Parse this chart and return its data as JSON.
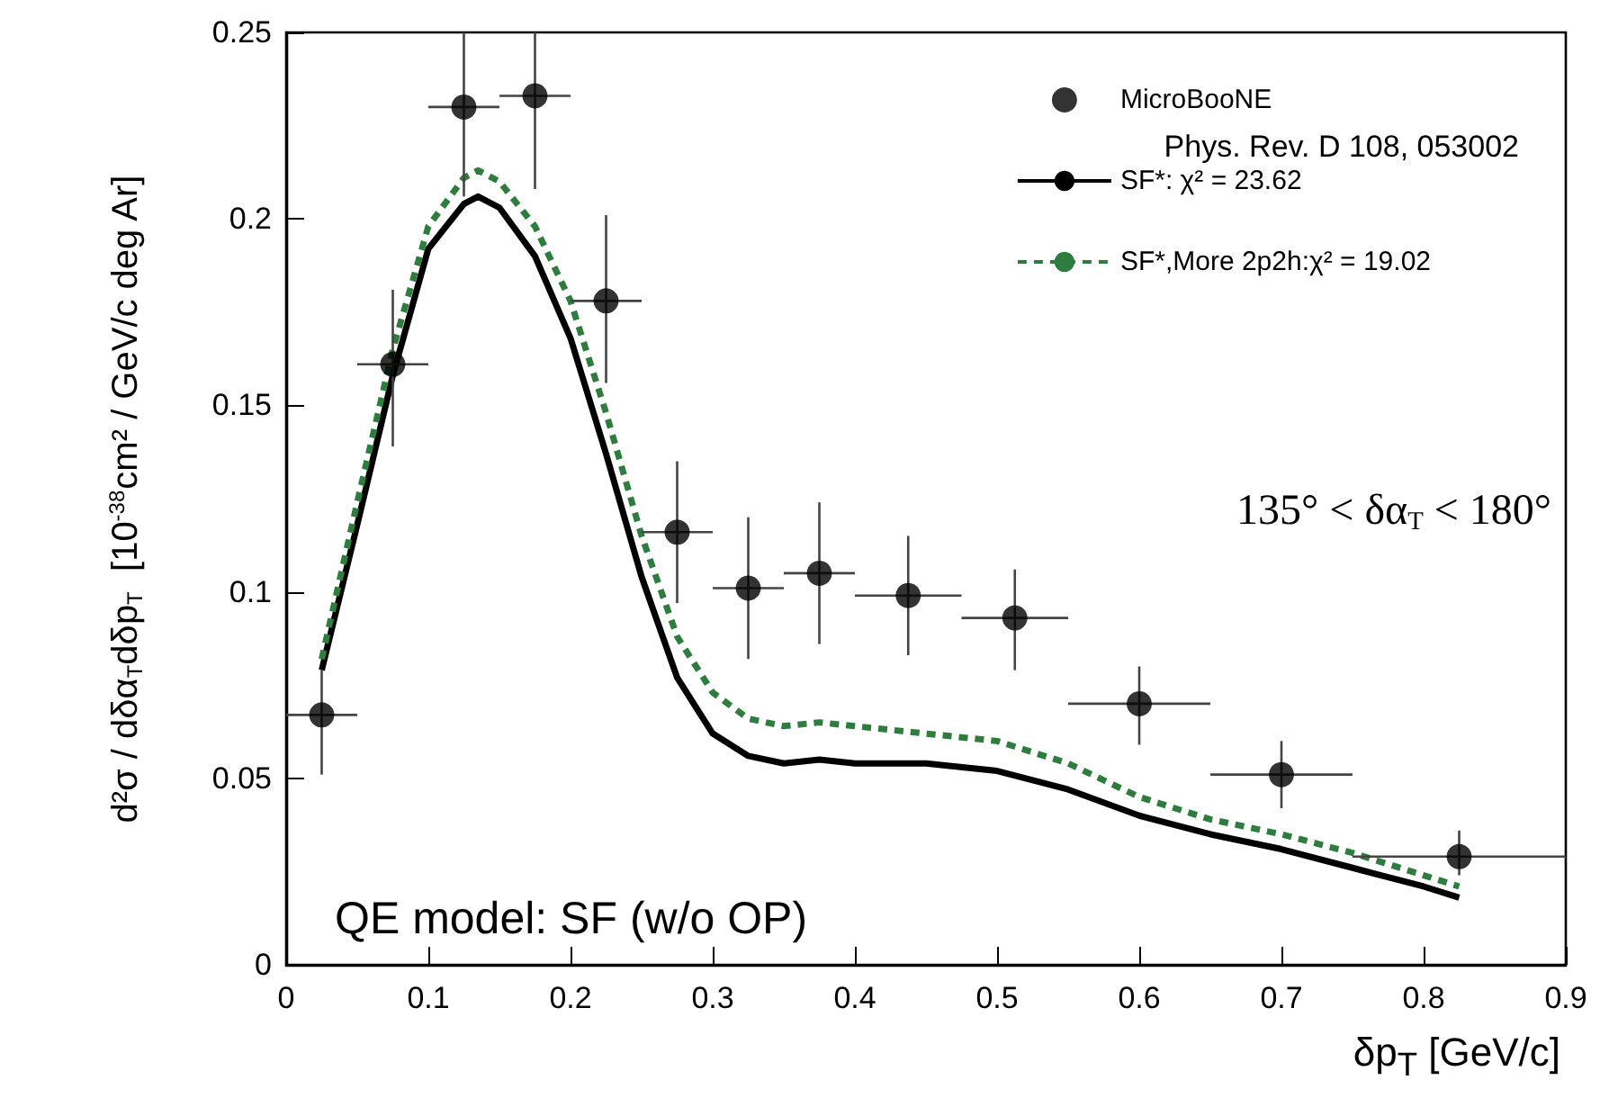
{
  "chart_data": {
    "type": "scatter",
    "xlabel": "δp$_{T}$ [GeV/c]",
    "ylabel": "d²σ / dδα$_{T}$dδp$_{T}$  [10$^{-38}$cm² / GeV/c deg Ar]",
    "xlim": [
      0,
      0.9
    ],
    "xticks": [
      0,
      0.1,
      0.2,
      0.3,
      0.4,
      0.5,
      0.6,
      0.7,
      0.8,
      0.9
    ],
    "ylim": [
      0,
      0.25
    ],
    "yticks": [
      0,
      0.05,
      0.1,
      0.15,
      0.2,
      0.25
    ],
    "grid": false,
    "legend": "top right",
    "annotations": [
      "Phys. Rev. D 108, 053002",
      "135° < δα$_{T}$ < 180°",
      "QE model: SF (w/o OP)"
    ],
    "series": [
      {
        "name": "MicroBooNE",
        "color": "#000000",
        "marker": "circle",
        "x": [
          0.025,
          0.075,
          0.125,
          0.175,
          0.225,
          0.275,
          0.325,
          0.375,
          0.4375,
          0.5125,
          0.6,
          0.7,
          0.825
        ],
        "values": [
          0.067,
          0.161,
          0.23,
          0.233,
          0.178,
          0.116,
          0.101,
          0.105,
          0.099,
          0.093,
          0.07,
          0.051,
          0.029
        ],
        "errors": [
          [
            0.051,
            0.079
          ],
          [
            0.139,
            0.181
          ],
          [
            0.206,
            0.25
          ],
          [
            0.208,
            0.25
          ],
          [
            0.156,
            0.201
          ],
          [
            0.097,
            0.135
          ],
          [
            0.082,
            0.12
          ],
          [
            0.086,
            0.124
          ],
          [
            0.083,
            0.115
          ],
          [
            0.079,
            0.106
          ],
          [
            0.059,
            0.08
          ],
          [
            0.042,
            0.06
          ],
          [
            0.024,
            0.036
          ]
        ],
        "xerrors": [
          [
            0,
            0.05
          ],
          [
            0.05,
            0.1
          ],
          [
            0.1,
            0.15
          ],
          [
            0.15,
            0.2
          ],
          [
            0.2,
            0.25
          ],
          [
            0.25,
            0.3
          ],
          [
            0.3,
            0.35
          ],
          [
            0.35,
            0.4
          ],
          [
            0.4,
            0.475
          ],
          [
            0.475,
            0.55
          ],
          [
            0.55,
            0.65
          ],
          [
            0.65,
            0.75
          ],
          [
            0.75,
            0.9
          ]
        ]
      },
      {
        "name": "SF*: χ² = 23.62",
        "type": "line",
        "color": "#000000",
        "marker": "none",
        "line_style": "solid",
        "x": [
          0.025,
          0.05,
          0.075,
          0.1,
          0.125,
          0.135,
          0.15,
          0.175,
          0.2,
          0.225,
          0.25,
          0.275,
          0.3,
          0.325,
          0.35,
          0.375,
          0.4,
          0.45,
          0.5,
          0.55,
          0.6,
          0.65,
          0.7,
          0.75,
          0.8,
          0.825
        ],
        "values": [
          0.079,
          0.118,
          0.158,
          0.192,
          0.204,
          0.206,
          0.203,
          0.19,
          0.168,
          0.137,
          0.104,
          0.077,
          0.062,
          0.056,
          0.054,
          0.055,
          0.054,
          0.054,
          0.052,
          0.047,
          0.04,
          0.035,
          0.031,
          0.026,
          0.021,
          0.018
        ]
      },
      {
        "name": "SF*,More 2p2h:χ² = 19.02",
        "type": "line",
        "color": "#2e7d3e",
        "marker": "none",
        "line_style": "dashed",
        "x": [
          0.025,
          0.05,
          0.075,
          0.1,
          0.125,
          0.135,
          0.15,
          0.175,
          0.2,
          0.225,
          0.25,
          0.275,
          0.3,
          0.325,
          0.35,
          0.375,
          0.4,
          0.45,
          0.5,
          0.55,
          0.6,
          0.65,
          0.7,
          0.75,
          0.8,
          0.825
        ],
        "values": [
          0.082,
          0.124,
          0.165,
          0.198,
          0.211,
          0.213,
          0.21,
          0.198,
          0.178,
          0.148,
          0.115,
          0.088,
          0.073,
          0.066,
          0.064,
          0.065,
          0.064,
          0.062,
          0.06,
          0.054,
          0.045,
          0.039,
          0.035,
          0.03,
          0.024,
          0.021
        ]
      }
    ]
  }
}
